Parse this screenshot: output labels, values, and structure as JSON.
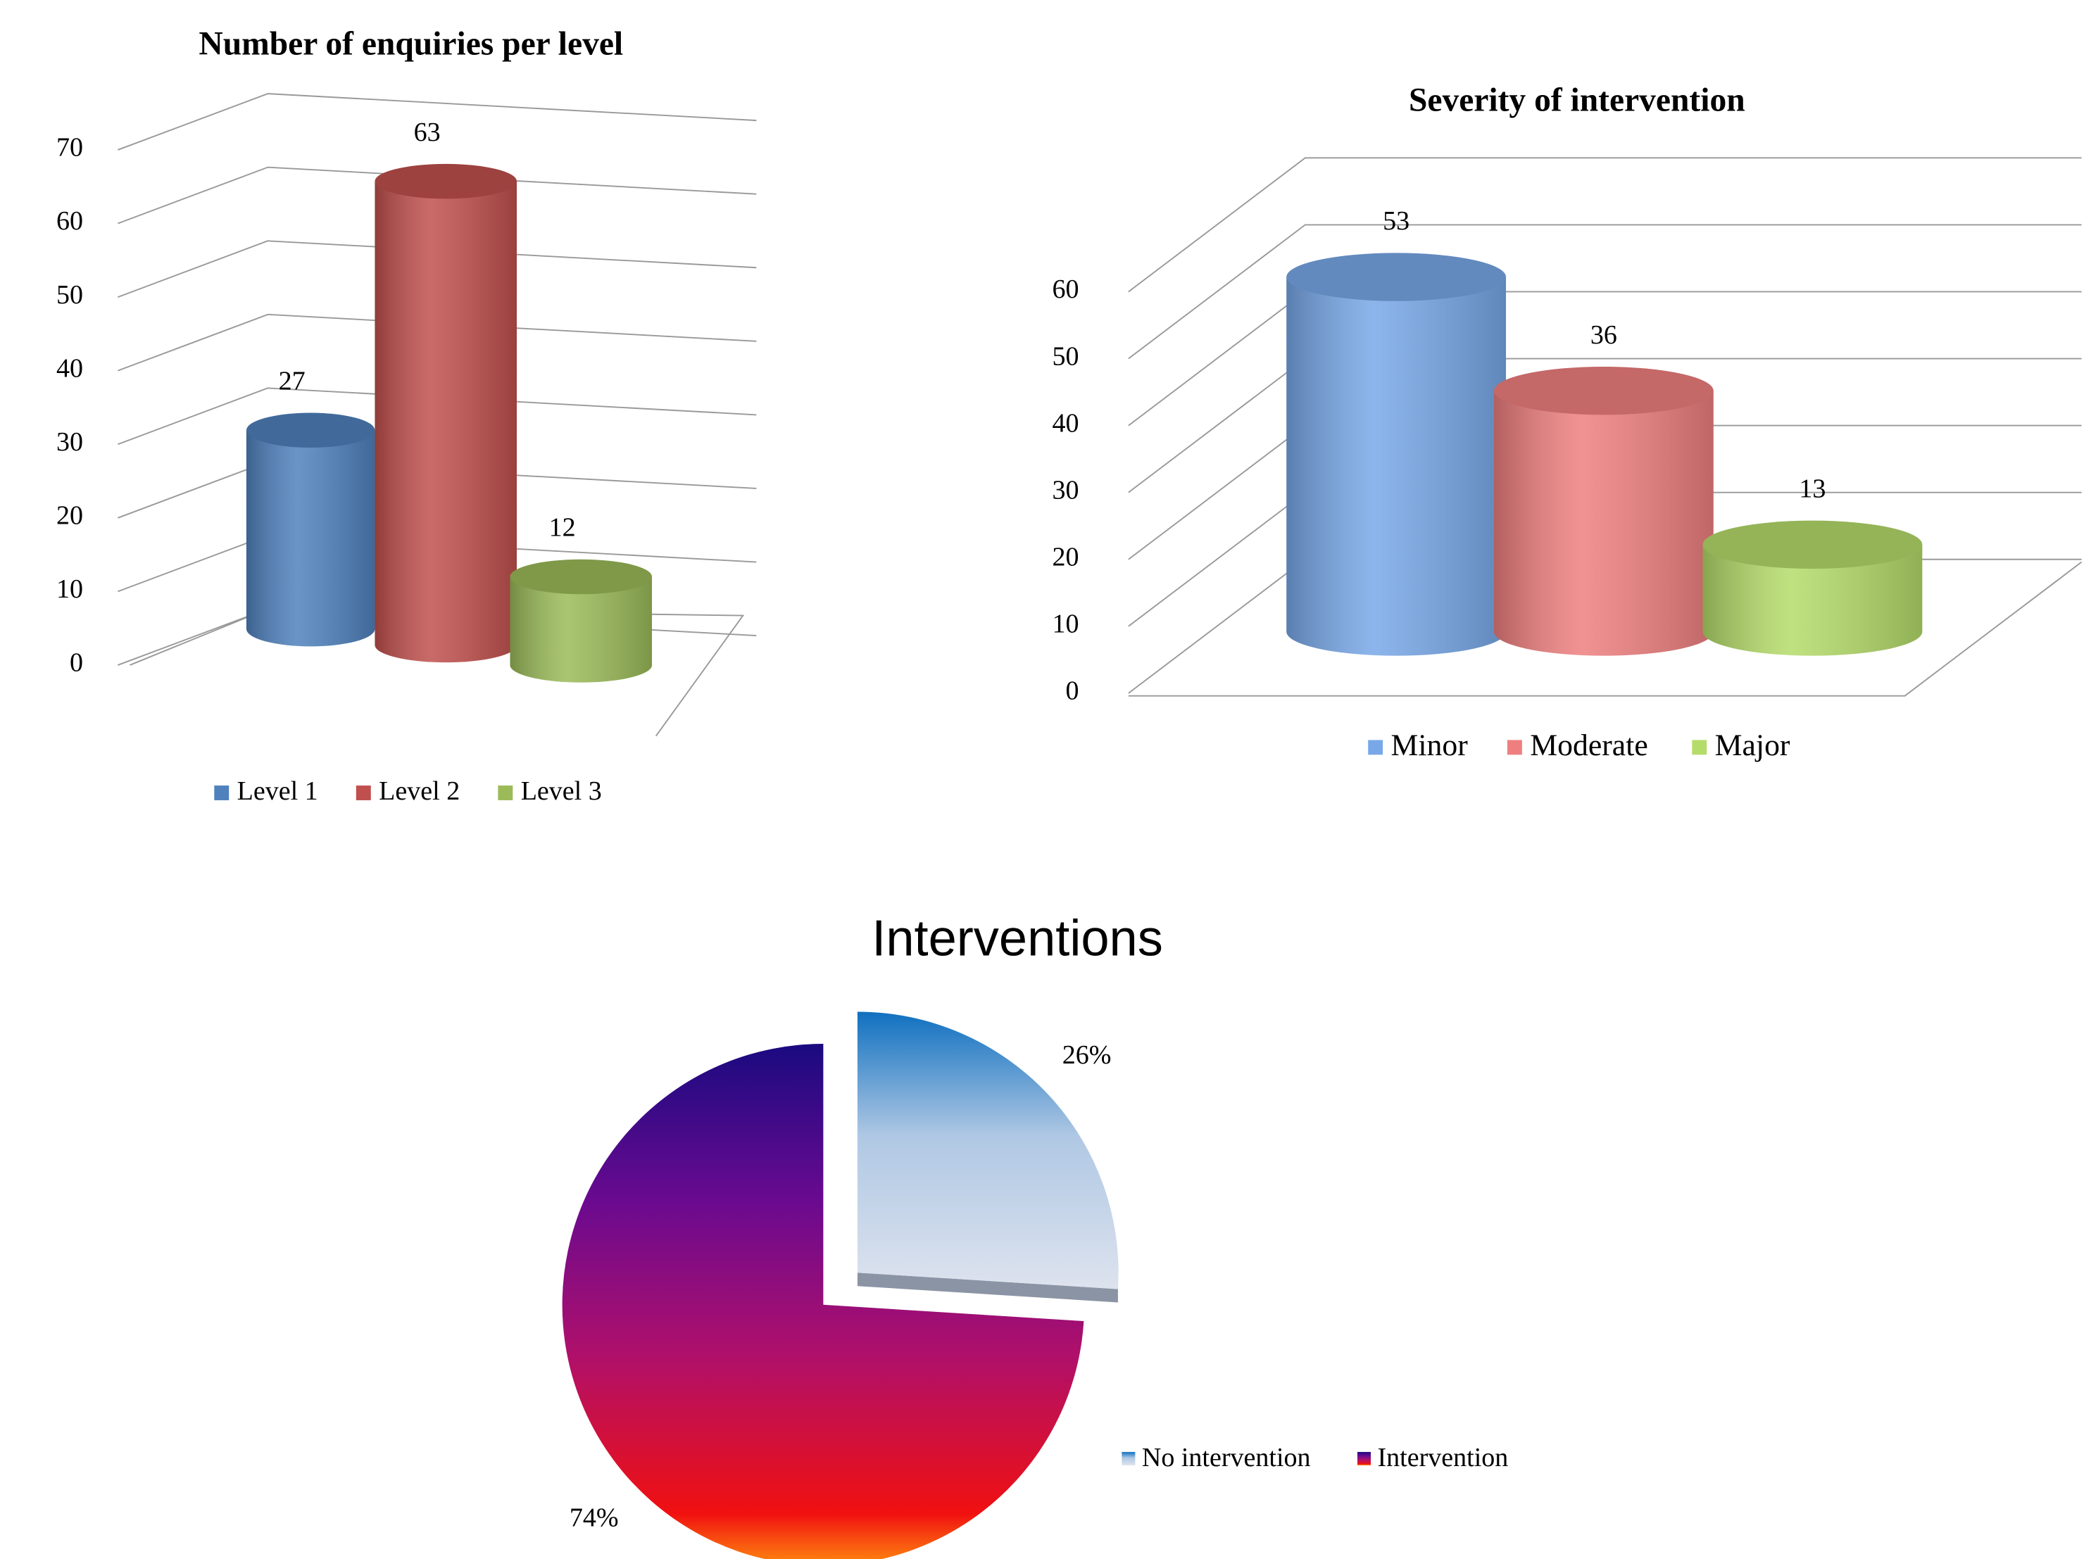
{
  "chart_data": [
    {
      "type": "bar",
      "title": "Number of enquiries per level",
      "categories": [
        null
      ],
      "series": [
        {
          "name": "Level 1",
          "color": "#4f81bd",
          "values": [
            27
          ]
        },
        {
          "name": "Level 2",
          "color": "#c0504d",
          "values": [
            63
          ]
        },
        {
          "name": "Level 3",
          "color": "#9bbb59",
          "values": [
            12
          ]
        }
      ],
      "ylim": [
        0,
        70
      ],
      "yticks": [
        0,
        10,
        20,
        30,
        40,
        50,
        60,
        70
      ],
      "grid": true
    },
    {
      "type": "bar",
      "title": "Severity of intervention",
      "categories": [
        null
      ],
      "series": [
        {
          "name": "Minor",
          "color": "#78a8e8",
          "values": [
            53
          ]
        },
        {
          "name": "Moderate",
          "color": "#ef7f7f",
          "values": [
            36
          ]
        },
        {
          "name": "Major",
          "color": "#b5dc6a",
          "values": [
            13
          ]
        }
      ],
      "ylim": [
        0,
        60
      ],
      "yticks": [
        0,
        10,
        20,
        30,
        40,
        50,
        60
      ],
      "grid": true
    },
    {
      "type": "pie",
      "title": "Interventions",
      "categories": [
        "No intervention",
        "Intervention"
      ],
      "values": [
        26,
        74
      ],
      "value_labels": [
        "26%",
        "74%"
      ],
      "colors": [
        "#1070c0",
        "#1a0a80"
      ]
    }
  ]
}
